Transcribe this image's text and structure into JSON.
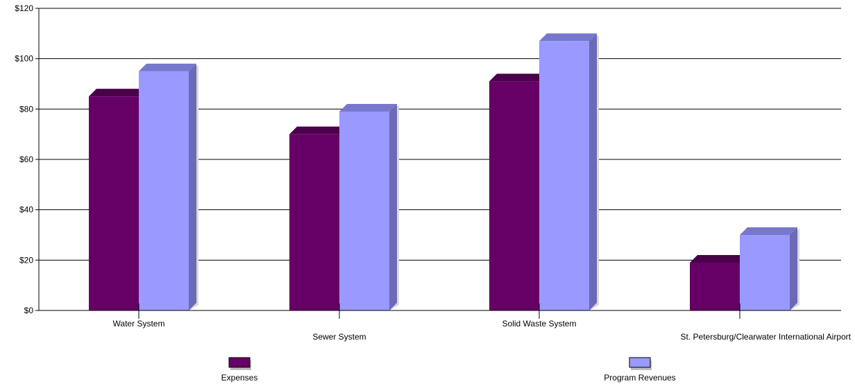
{
  "chart_data": {
    "type": "bar",
    "style": "3d-grouped",
    "categories": [
      "Water System",
      "Sewer System",
      "Solid Waste System",
      "St. Petersburg/Clearwater International Airport"
    ],
    "series": [
      {
        "name": "Expenses",
        "color": "#660066",
        "top_color": "#4a004a",
        "side_color": "#3d003d",
        "values": [
          85,
          70,
          91,
          19
        ]
      },
      {
        "name": "Program Revenues",
        "color": "#9999ff",
        "top_color": "#7777cc",
        "side_color": "#6a6ab8",
        "values": [
          95,
          79,
          107,
          30
        ]
      }
    ],
    "yticks": [
      "$0",
      "$20",
      "$40",
      "$60",
      "$80",
      "$100",
      "$120"
    ],
    "ylim": [
      0,
      120
    ],
    "grid": true,
    "legend_position": "bottom"
  }
}
